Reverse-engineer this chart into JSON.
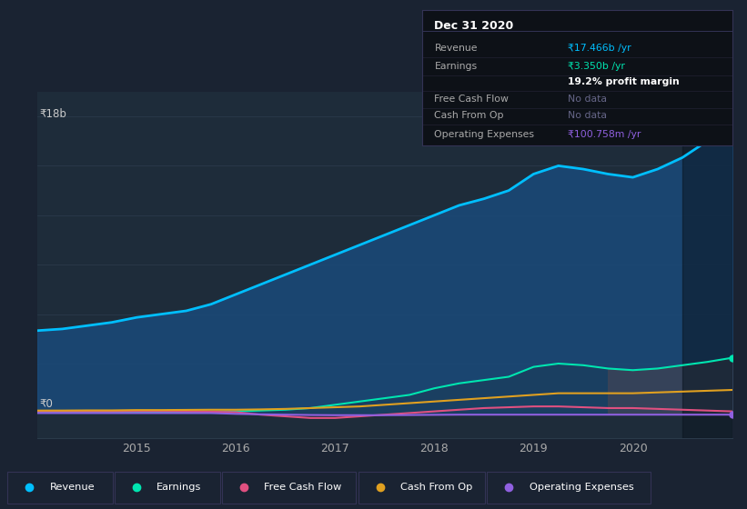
{
  "bg_color": "#1a2332",
  "plot_bg_color": "#1e2c3a",
  "ylabel_text": "₹18b",
  "y0_text": "₹0",
  "years": [
    2014.0,
    2014.25,
    2014.5,
    2014.75,
    2015.0,
    2015.25,
    2015.5,
    2015.75,
    2016.0,
    2016.25,
    2016.5,
    2016.75,
    2017.0,
    2017.25,
    2017.5,
    2017.75,
    2018.0,
    2018.25,
    2018.5,
    2018.75,
    2019.0,
    2019.25,
    2019.5,
    2019.75,
    2020.0,
    2020.25,
    2020.5,
    2020.75,
    2021.0
  ],
  "revenue": [
    5.0,
    5.1,
    5.3,
    5.5,
    5.8,
    6.0,
    6.2,
    6.6,
    7.2,
    7.8,
    8.4,
    9.0,
    9.6,
    10.2,
    10.8,
    11.4,
    12.0,
    12.6,
    13.0,
    13.5,
    14.5,
    15.0,
    14.8,
    14.5,
    14.3,
    14.8,
    15.5,
    16.5,
    17.466
  ],
  "earnings": [
    0.05,
    0.05,
    0.06,
    0.06,
    0.07,
    0.07,
    0.08,
    0.09,
    0.1,
    0.15,
    0.2,
    0.3,
    0.5,
    0.7,
    0.9,
    1.1,
    1.5,
    1.8,
    2.0,
    2.2,
    2.8,
    3.0,
    2.9,
    2.7,
    2.6,
    2.7,
    2.9,
    3.1,
    3.35
  ],
  "free_cash_flow": [
    0.1,
    0.1,
    0.1,
    0.1,
    0.12,
    0.12,
    0.1,
    0.08,
    0.05,
    -0.1,
    -0.2,
    -0.3,
    -0.3,
    -0.2,
    -0.1,
    0.0,
    0.1,
    0.2,
    0.3,
    0.35,
    0.4,
    0.4,
    0.35,
    0.3,
    0.3,
    0.25,
    0.2,
    0.15,
    0.1
  ],
  "cash_from_op": [
    0.15,
    0.15,
    0.16,
    0.16,
    0.18,
    0.18,
    0.19,
    0.2,
    0.2,
    0.22,
    0.25,
    0.3,
    0.35,
    0.4,
    0.5,
    0.6,
    0.7,
    0.8,
    0.9,
    1.0,
    1.1,
    1.2,
    1.2,
    1.2,
    1.2,
    1.25,
    1.3,
    1.35,
    1.4
  ],
  "op_expenses": [
    0.0,
    0.0,
    0.0,
    0.0,
    0.0,
    0.0,
    0.0,
    0.0,
    -0.05,
    -0.08,
    -0.1,
    -0.12,
    -0.13,
    -0.13,
    -0.13,
    -0.12,
    -0.11,
    -0.1,
    -0.1,
    -0.1,
    -0.1,
    -0.1,
    -0.1,
    -0.1,
    -0.1,
    -0.1,
    -0.1,
    -0.1,
    -0.1
  ],
  "revenue_color": "#00bfff",
  "earnings_color": "#00e5b0",
  "fcf_color": "#e05080",
  "cashop_color": "#e0a020",
  "opex_color": "#9060e0",
  "revenue_fill": "#1a4a7a",
  "legend_labels": [
    "Revenue",
    "Earnings",
    "Free Cash Flow",
    "Cash From Op",
    "Operating Expenses"
  ],
  "legend_colors": [
    "#00bfff",
    "#00e5b0",
    "#e05080",
    "#e0a020",
    "#9060e0"
  ],
  "info_panel_title": "Dec 31 2020",
  "info_rows": [
    {
      "label": "Revenue",
      "value": "₹17.466b /yr",
      "value_color": "#00bfff",
      "bold": false
    },
    {
      "label": "Earnings",
      "value": "₹3.350b /yr",
      "value_color": "#00e5b0",
      "bold": false
    },
    {
      "label": "",
      "value": "19.2% profit margin",
      "value_color": "#ffffff",
      "bold": true
    },
    {
      "label": "Free Cash Flow",
      "value": "No data",
      "value_color": "#666688",
      "bold": false
    },
    {
      "label": "Cash From Op",
      "value": "No data",
      "value_color": "#666688",
      "bold": false
    },
    {
      "label": "Operating Expenses",
      "value": "₹100.758m /yr",
      "value_color": "#9060e0",
      "bold": false
    }
  ],
  "grid_color": "#2a3a4a",
  "x_tick_positions": [
    2015,
    2016,
    2017,
    2018,
    2019,
    2020
  ],
  "ylim": [
    -1.5,
    19.5
  ],
  "panel_bg": "#0d1117",
  "panel_border": "#333355"
}
